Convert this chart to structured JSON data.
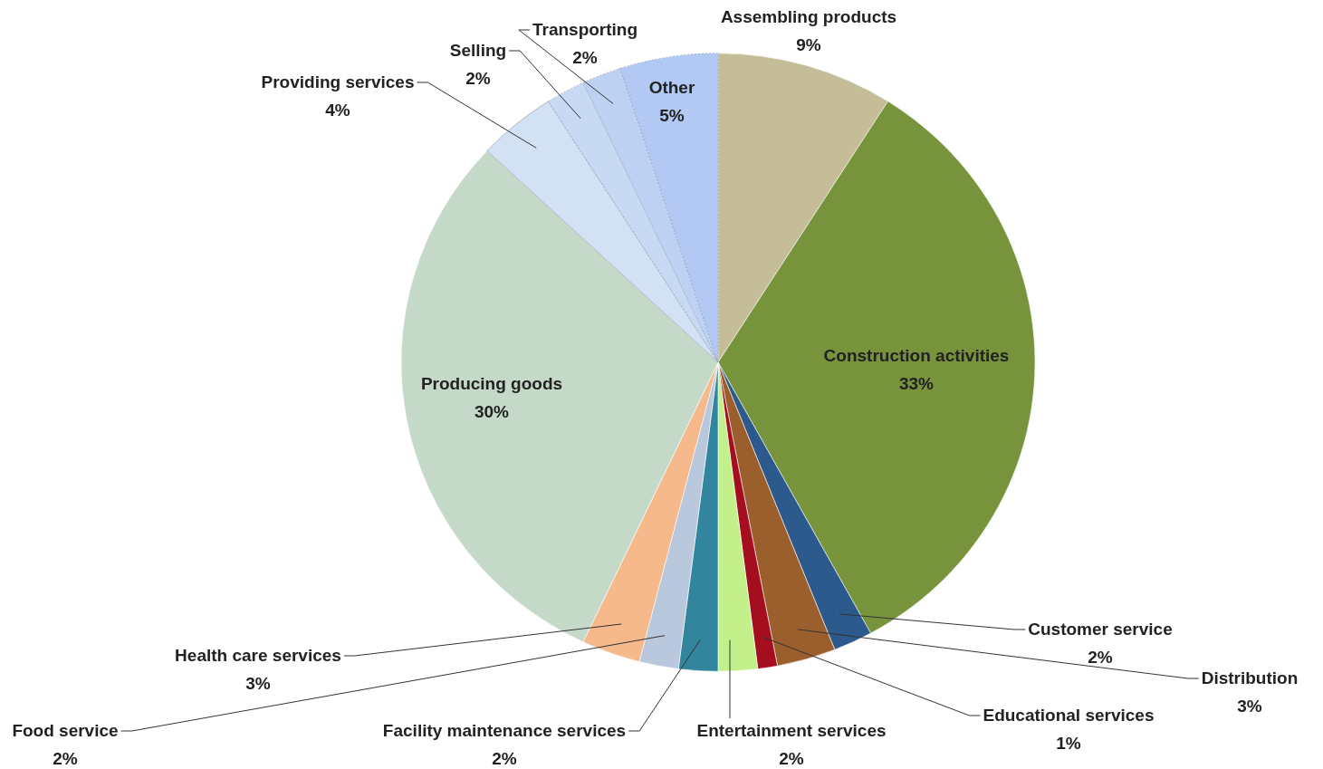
{
  "chart_data": {
    "type": "pie",
    "categories": [
      "Assembling products",
      "Construction activities",
      "Customer service",
      "Distribution",
      "Educational  services",
      "Entertainment services",
      "Facility maintenance  services",
      "Food service",
      "Health care services",
      "Producing goods",
      "Providing services",
      "Selling",
      "Transporting",
      "Other"
    ],
    "values": [
      9,
      33,
      2,
      3,
      1,
      2,
      2,
      2,
      3,
      30,
      4,
      2,
      2,
      5
    ],
    "value_labels": [
      "9%",
      "33%",
      "2%",
      "3%",
      "1%",
      "2%",
      "2%",
      "2%",
      "3%",
      "30%",
      "4%",
      "2%",
      "2%",
      "5%"
    ],
    "colors": [
      "#c4bd97",
      "#77933c",
      "#2c5a8c",
      "#9b5e2d",
      "#a50e1e",
      "#c3f08a",
      "#31859c",
      "#b9c8dc",
      "#f5b98b",
      "#c4d9c8",
      "#d3e1f5",
      "#c8d9f4",
      "#bdd1f3",
      "#b2caf3"
    ]
  }
}
